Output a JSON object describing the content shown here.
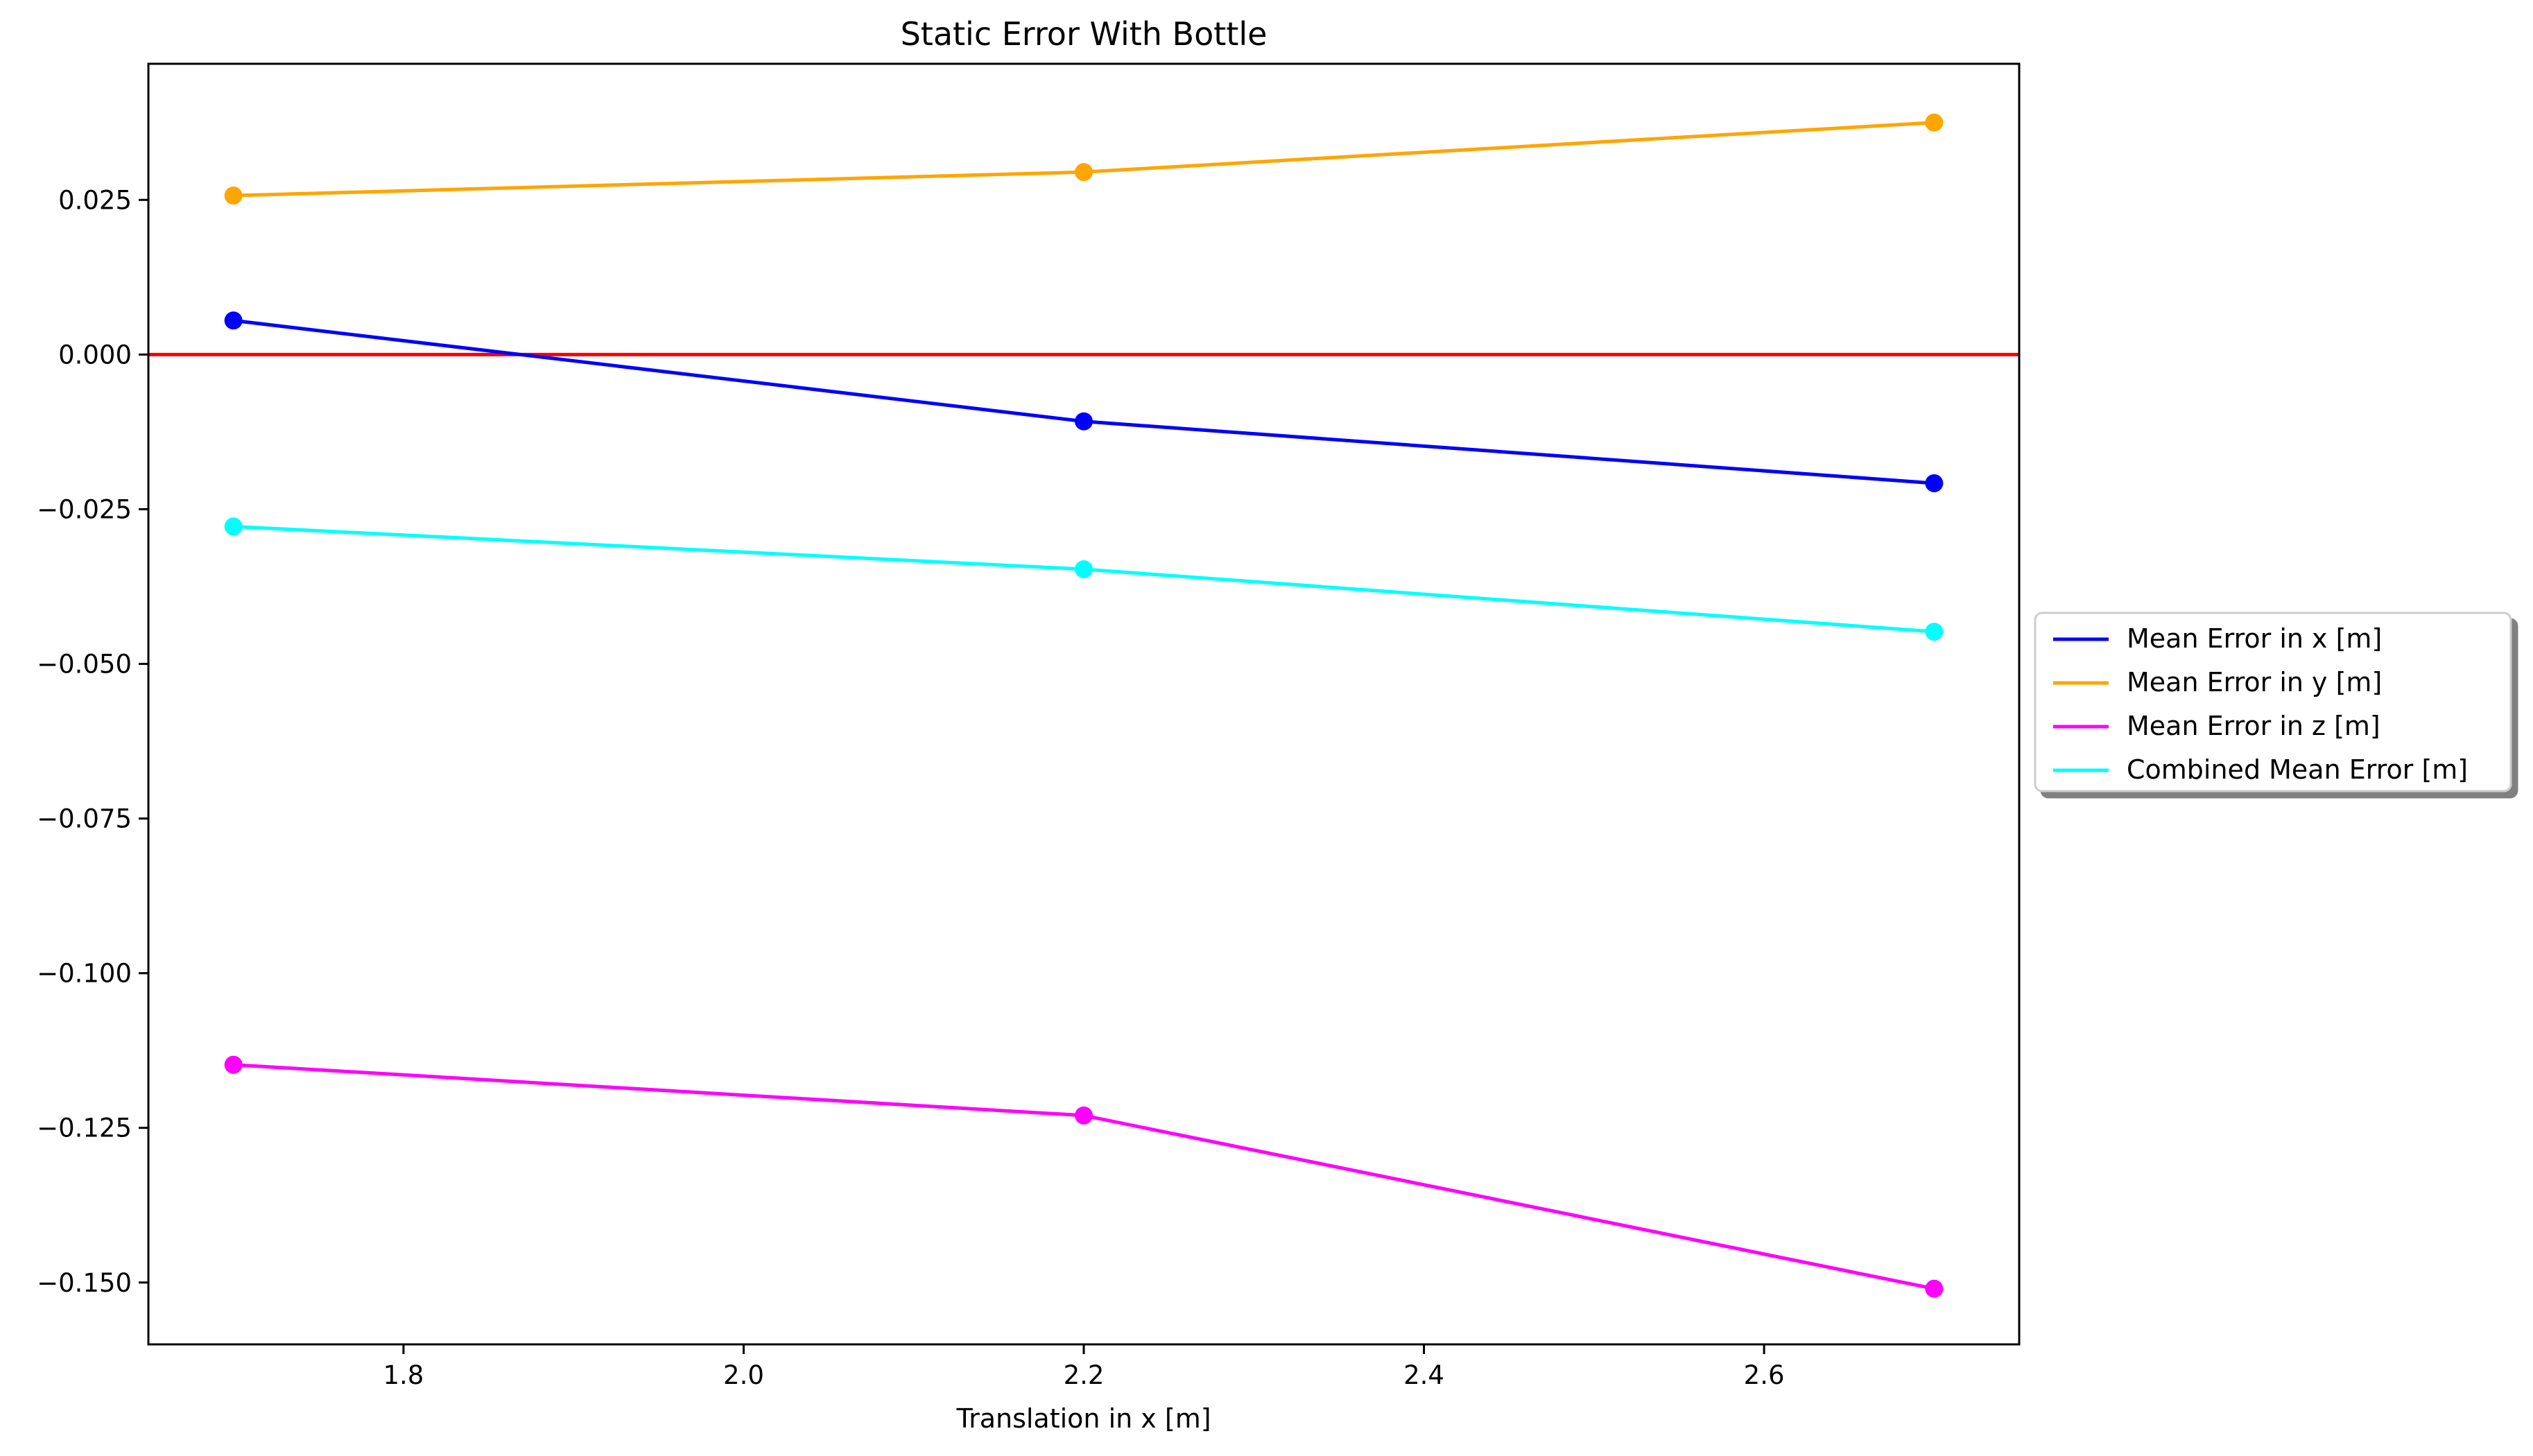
{
  "chart_data": {
    "type": "line",
    "title": "Static Error With Bottle",
    "xlabel": "Translation in x [m]",
    "ylabel": "",
    "xlim": [
      1.65,
      2.75
    ],
    "ylim": [
      -0.16,
      0.047
    ],
    "x_ticks": [
      "1.8",
      "2.0",
      "2.2",
      "2.4",
      "2.6"
    ],
    "x_tick_values": [
      1.8,
      2.0,
      2.2,
      2.4,
      2.6
    ],
    "y_ticks": [
      "0.025",
      "0.000",
      "−0.025",
      "−0.050",
      "−0.075",
      "−0.100",
      "−0.125",
      "−0.150"
    ],
    "y_tick_values": [
      0.025,
      0.0,
      -0.025,
      -0.05,
      -0.075,
      -0.1,
      -0.125,
      -0.15
    ],
    "x": [
      1.7,
      2.2,
      2.7
    ],
    "series": [
      {
        "name": "Mean Error in x [m]",
        "color": "#0000ff",
        "values": [
          0.0055,
          -0.0108,
          -0.0208
        ]
      },
      {
        "name": "Mean Error in y [m]",
        "color": "#ffa500",
        "values": [
          0.0257,
          0.0295,
          0.0375
        ]
      },
      {
        "name": "Mean Error in z [m]",
        "color": "#ff00ff",
        "values": [
          -0.1148,
          -0.123,
          -0.151
        ]
      },
      {
        "name": "Combined Mean Error [m]",
        "color": "#00ffff",
        "values": [
          -0.0278,
          -0.0347,
          -0.0448
        ]
      }
    ],
    "reference_line": {
      "y": 0.0,
      "color": "#ff0000"
    },
    "grid": false,
    "legend_position": "center-right-outside"
  }
}
